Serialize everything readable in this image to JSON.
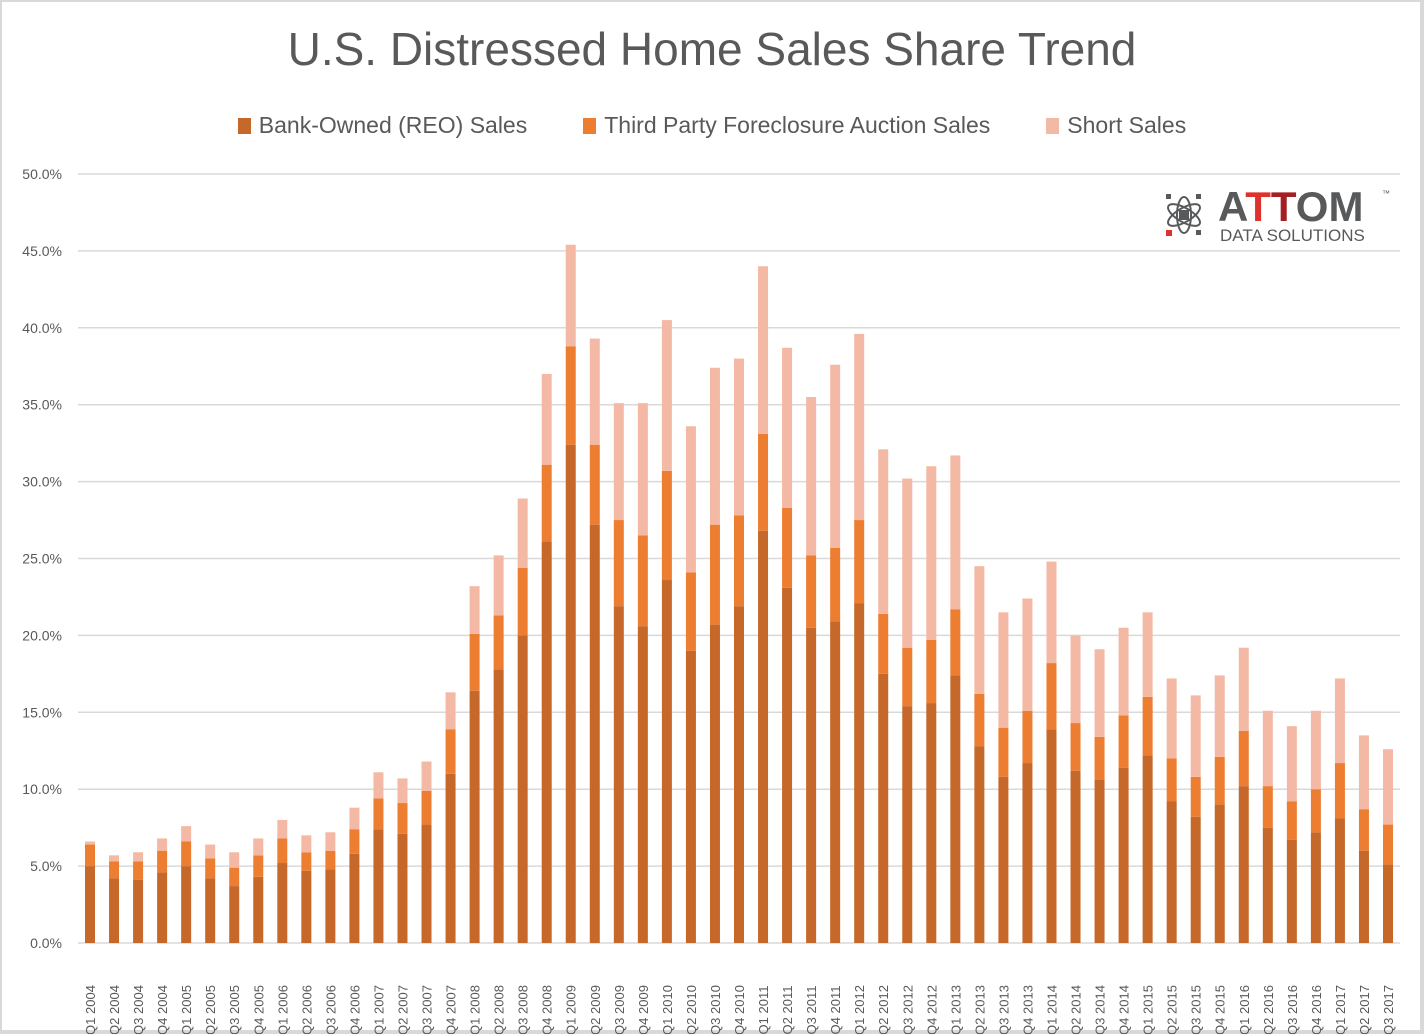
{
  "chart_data": {
    "type": "bar",
    "stacked": true,
    "title": "U.S. Distressed Home Sales Share Trend",
    "xlabel": "",
    "ylabel": "",
    "ylim": [
      0,
      50
    ],
    "yticks": [
      "0.0%",
      "5.0%",
      "10.0%",
      "15.0%",
      "20.0%",
      "25.0%",
      "30.0%",
      "35.0%",
      "40.0%",
      "45.0%",
      "50.0%"
    ],
    "ytick_values": [
      0,
      5,
      10,
      15,
      20,
      25,
      30,
      35,
      40,
      45,
      50
    ],
    "grid": true,
    "legend_position": "top",
    "categories": [
      "Q1 2004",
      "Q2 2004",
      "Q3 2004",
      "Q4 2004",
      "Q1 2005",
      "Q2 2005",
      "Q3 2005",
      "Q4 2005",
      "Q1 2006",
      "Q2 2006",
      "Q3 2006",
      "Q4 2006",
      "Q1 2007",
      "Q2 2007",
      "Q3 2007",
      "Q4 2007",
      "Q1 2008",
      "Q2 2008",
      "Q3 2008",
      "Q4 2008",
      "Q1 2009",
      "Q2 2009",
      "Q3 2009",
      "Q4 2009",
      "Q1 2010",
      "Q2 2010",
      "Q3 2010",
      "Q4 2010",
      "Q1 2011",
      "Q2 2011",
      "Q3 2011",
      "Q4 2011",
      "Q1 2012",
      "Q2 2012",
      "Q3 2012",
      "Q4 2012",
      "Q1 2013",
      "Q2 2013",
      "Q3 2013",
      "Q4 2013",
      "Q1 2014",
      "Q2 2014",
      "Q3 2014",
      "Q4 2014",
      "Q1 2015",
      "Q2 2015",
      "Q3 2015",
      "Q4 2015",
      "Q1 2016",
      "Q2 2016",
      "Q3 2016",
      "Q4 2016",
      "Q1 2017",
      "Q2 2017",
      "Q3 2017"
    ],
    "series": [
      {
        "name": "Bank-Owned (REO) Sales",
        "color": "#c5682a",
        "values": [
          5.0,
          4.2,
          4.1,
          4.6,
          5.0,
          4.2,
          3.7,
          4.3,
          5.2,
          4.7,
          4.8,
          5.8,
          7.4,
          7.1,
          7.7,
          11.0,
          16.4,
          17.8,
          20.0,
          26.1,
          32.4,
          27.2,
          21.9,
          20.6,
          23.6,
          19.0,
          20.7,
          21.9,
          26.8,
          23.1,
          20.5,
          20.9,
          22.1,
          17.5,
          15.4,
          15.6,
          17.4,
          12.8,
          10.8,
          11.7,
          13.9,
          11.2,
          10.6,
          11.4,
          12.2,
          9.2,
          8.2,
          9.0,
          10.2,
          7.5,
          6.7,
          7.2,
          8.1,
          6.0,
          5.1
        ]
      },
      {
        "name": "Third Party Foreclosure Auction Sales",
        "color": "#ed7d31",
        "values": [
          1.4,
          1.1,
          1.2,
          1.4,
          1.6,
          1.3,
          1.2,
          1.4,
          1.6,
          1.2,
          1.2,
          1.6,
          2.0,
          2.0,
          2.2,
          2.9,
          3.7,
          3.5,
          4.4,
          5.0,
          6.4,
          5.2,
          5.6,
          5.9,
          7.1,
          5.1,
          6.5,
          5.9,
          6.3,
          5.2,
          4.7,
          4.8,
          5.4,
          3.9,
          3.8,
          4.1,
          4.3,
          3.4,
          3.2,
          3.4,
          4.3,
          3.1,
          2.8,
          3.4,
          3.8,
          2.8,
          2.6,
          3.1,
          3.6,
          2.7,
          2.5,
          2.8,
          3.6,
          2.7,
          2.6
        ]
      },
      {
        "name": "Short Sales",
        "color": "#f4b9a4",
        "values": [
          0.2,
          0.4,
          0.6,
          0.8,
          1.0,
          0.9,
          1.0,
          1.1,
          1.2,
          1.1,
          1.2,
          1.4,
          1.7,
          1.6,
          1.9,
          2.4,
          3.1,
          3.9,
          4.5,
          5.9,
          6.6,
          6.9,
          7.6,
          8.6,
          9.8,
          9.5,
          10.2,
          10.2,
          10.9,
          10.4,
          10.3,
          11.9,
          12.1,
          10.7,
          11.0,
          11.3,
          10.0,
          8.3,
          7.5,
          7.3,
          6.6,
          5.7,
          5.7,
          5.7,
          5.5,
          5.2,
          5.3,
          5.3,
          5.4,
          4.9,
          4.9,
          5.1,
          5.5,
          4.8,
          4.9
        ]
      }
    ]
  },
  "logo": {
    "brand": "ATTOM",
    "tagline": "DATA SOLUTIONS",
    "trademark": "™"
  },
  "colors": {
    "text": "#595959",
    "grid": "#d9d9d9",
    "logo_gray": "#58595b",
    "logo_red": "#e0322c",
    "logo_darkred": "#a41f24"
  }
}
